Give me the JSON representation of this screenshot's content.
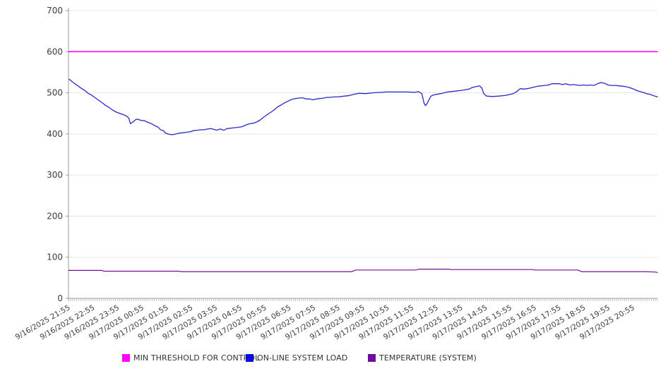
{
  "chart_data": {
    "type": "line",
    "title": "",
    "xlabel": "",
    "ylabel": "",
    "x_axis": {
      "kind": "time",
      "labels": [
        "9/16/2025 21:55",
        "9/16/2025 22:55",
        "9/16/2025 23:55",
        "9/17/2025 00:55",
        "9/17/2025 01:55",
        "9/17/2025 02:55",
        "9/17/2025 03:55",
        "9/17/2025 04:55",
        "9/17/2025 05:55",
        "9/17/2025 06:55",
        "9/17/2025 07:55",
        "9/17/2025 08:55",
        "9/17/2025 09:55",
        "9/17/2025 10:55",
        "9/17/2025 11:55",
        "9/17/2025 12:55",
        "9/17/2025 13:55",
        "9/17/2025 14:55",
        "9/17/2025 15:55",
        "9/17/2025 16:55",
        "9/17/2025 17:55",
        "9/17/2025 18:55",
        "9/17/2025 19:55",
        "9/17/2025 20:55"
      ],
      "label_rotation_deg": -30,
      "hours_range": [
        0,
        24
      ],
      "minor_tick_count": 288
    },
    "y_axis": {
      "min": 0,
      "max": 700,
      "tick_step": 100,
      "tick_labels": [
        "0",
        "100",
        "200",
        "300",
        "400",
        "500",
        "600",
        "700"
      ]
    },
    "grid": "horizontal",
    "legend_position": "bottom",
    "series": [
      {
        "name": "MIN THRESHOLD FOR CONTROL",
        "color": "#ee00ee",
        "width": 1.5,
        "points": [
          [
            0,
            600
          ],
          [
            24,
            600
          ]
        ]
      },
      {
        "name": "ON-LINE SYSTEM LOAD",
        "color": "#2828cc",
        "width": 1.3,
        "points": [
          [
            0.03,
            533
          ],
          [
            0.17,
            526
          ],
          [
            0.31,
            520
          ],
          [
            0.52,
            511
          ],
          [
            0.66,
            506
          ],
          [
            0.8,
            499
          ],
          [
            0.95,
            494
          ],
          [
            1.09,
            488
          ],
          [
            1.23,
            482
          ],
          [
            1.37,
            476
          ],
          [
            1.52,
            469
          ],
          [
            1.66,
            464
          ],
          [
            1.8,
            458
          ],
          [
            1.95,
            453
          ],
          [
            2.09,
            450
          ],
          [
            2.23,
            447
          ],
          [
            2.38,
            443
          ],
          [
            2.46,
            438
          ],
          [
            2.52,
            425
          ],
          [
            2.61,
            428
          ],
          [
            2.72,
            434
          ],
          [
            2.81,
            436
          ],
          [
            2.95,
            433
          ],
          [
            3.09,
            432
          ],
          [
            3.24,
            428
          ],
          [
            3.38,
            425
          ],
          [
            3.52,
            420
          ],
          [
            3.66,
            416
          ],
          [
            3.75,
            410
          ],
          [
            3.87,
            408
          ],
          [
            3.95,
            402
          ],
          [
            4.09,
            399
          ],
          [
            4.24,
            398
          ],
          [
            4.38,
            400
          ],
          [
            4.52,
            402
          ],
          [
            4.67,
            403
          ],
          [
            4.81,
            404
          ],
          [
            4.95,
            405
          ],
          [
            5.1,
            408
          ],
          [
            5.24,
            409
          ],
          [
            5.39,
            410
          ],
          [
            5.53,
            410
          ],
          [
            5.67,
            412
          ],
          [
            5.81,
            413
          ],
          [
            6.04,
            409
          ],
          [
            6.19,
            412
          ],
          [
            6.33,
            409
          ],
          [
            6.47,
            413
          ],
          [
            6.76,
            415
          ],
          [
            7.05,
            417
          ],
          [
            7.33,
            424
          ],
          [
            7.53,
            426
          ],
          [
            7.67,
            429
          ],
          [
            7.82,
            434
          ],
          [
            7.96,
            441
          ],
          [
            8.1,
            447
          ],
          [
            8.25,
            453
          ],
          [
            8.39,
            459
          ],
          [
            8.53,
            466
          ],
          [
            8.68,
            471
          ],
          [
            8.82,
            476
          ],
          [
            8.96,
            480
          ],
          [
            9.1,
            484
          ],
          [
            9.25,
            486
          ],
          [
            9.39,
            487
          ],
          [
            9.54,
            488
          ],
          [
            9.68,
            485
          ],
          [
            9.82,
            485
          ],
          [
            9.96,
            483
          ],
          [
            10.11,
            485
          ],
          [
            10.25,
            486
          ],
          [
            10.39,
            487
          ],
          [
            10.54,
            489
          ],
          [
            10.68,
            489
          ],
          [
            10.82,
            490
          ],
          [
            10.97,
            490
          ],
          [
            11.11,
            491
          ],
          [
            11.25,
            492
          ],
          [
            11.4,
            493
          ],
          [
            11.54,
            495
          ],
          [
            11.83,
            499
          ],
          [
            12.11,
            498
          ],
          [
            12.4,
            500
          ],
          [
            12.68,
            501
          ],
          [
            12.97,
            502
          ],
          [
            13.26,
            502
          ],
          [
            13.54,
            502
          ],
          [
            13.83,
            502
          ],
          [
            14.11,
            501
          ],
          [
            14.26,
            503
          ],
          [
            14.4,
            498
          ],
          [
            14.49,
            475
          ],
          [
            14.54,
            469
          ],
          [
            14.6,
            472
          ],
          [
            14.69,
            483
          ],
          [
            14.77,
            492
          ],
          [
            14.89,
            495
          ],
          [
            15.17,
            498
          ],
          [
            15.46,
            502
          ],
          [
            15.75,
            504
          ],
          [
            16.03,
            506
          ],
          [
            16.32,
            509
          ],
          [
            16.46,
            513
          ],
          [
            16.61,
            515
          ],
          [
            16.75,
            517
          ],
          [
            16.84,
            512
          ],
          [
            16.92,
            498
          ],
          [
            17.04,
            492
          ],
          [
            17.27,
            491
          ],
          [
            17.55,
            492
          ],
          [
            17.84,
            494
          ],
          [
            18.13,
            498
          ],
          [
            18.27,
            503
          ],
          [
            18.41,
            510
          ],
          [
            18.56,
            509
          ],
          [
            18.7,
            510
          ],
          [
            18.84,
            512
          ],
          [
            18.98,
            514
          ],
          [
            19.13,
            516
          ],
          [
            19.27,
            517
          ],
          [
            19.41,
            518
          ],
          [
            19.56,
            519
          ],
          [
            19.7,
            522
          ],
          [
            19.84,
            522
          ],
          [
            19.99,
            522
          ],
          [
            20.13,
            520
          ],
          [
            20.27,
            522
          ],
          [
            20.42,
            519
          ],
          [
            20.56,
            520
          ],
          [
            20.7,
            519
          ],
          [
            20.85,
            518
          ],
          [
            20.99,
            519
          ],
          [
            21.13,
            518
          ],
          [
            21.27,
            519
          ],
          [
            21.42,
            518
          ],
          [
            21.56,
            522
          ],
          [
            21.7,
            525
          ],
          [
            21.85,
            523
          ],
          [
            21.99,
            519
          ],
          [
            22.13,
            518
          ],
          [
            22.28,
            518
          ],
          [
            22.42,
            517
          ],
          [
            22.56,
            516
          ],
          [
            22.71,
            515
          ],
          [
            22.85,
            513
          ],
          [
            22.99,
            510
          ],
          [
            23.14,
            506
          ],
          [
            23.28,
            503
          ],
          [
            23.42,
            501
          ],
          [
            23.56,
            498
          ],
          [
            23.71,
            496
          ],
          [
            23.85,
            493
          ],
          [
            24,
            490
          ]
        ]
      },
      {
        "name": "TEMPERATURE (SYSTEM)",
        "color": "#70108e",
        "width": 1.2,
        "points": [
          [
            0,
            68
          ],
          [
            1.35,
            68
          ],
          [
            1.45,
            66
          ],
          [
            4.5,
            66
          ],
          [
            4.6,
            65
          ],
          [
            11.55,
            65
          ],
          [
            11.7,
            69
          ],
          [
            14.15,
            69
          ],
          [
            14.3,
            71
          ],
          [
            15.5,
            71
          ],
          [
            15.6,
            70
          ],
          [
            18.9,
            70
          ],
          [
            19.0,
            69
          ],
          [
            20.75,
            69
          ],
          [
            20.9,
            65
          ],
          [
            23.5,
            65
          ],
          [
            23.9,
            64
          ],
          [
            24,
            63
          ]
        ]
      }
    ]
  },
  "legend": {
    "items": [
      {
        "label": "MIN THRESHOLD FOR CONTROL",
        "color": "#ff00ff"
      },
      {
        "label": "ON-LINE SYSTEM LOAD",
        "color": "#0b0be0"
      },
      {
        "label": "TEMPERATURE (SYSTEM)",
        "color": "#6b0f9c"
      }
    ]
  },
  "colors": {
    "grid": "#e7e7e7",
    "axis": "#999999",
    "tick": "#aaaaaa",
    "tick_label": "#3c3c3c",
    "background": "#ffffff"
  }
}
